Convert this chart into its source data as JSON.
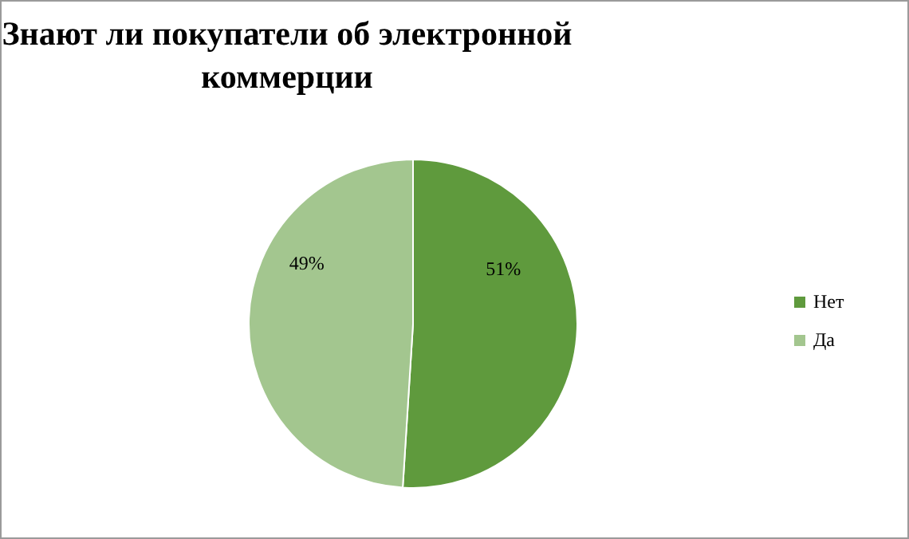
{
  "chart_data": {
    "type": "pie",
    "title": "Знают ли покупатели об электронной коммерции",
    "categories": [
      "Нет",
      "Да"
    ],
    "values": [
      51,
      49
    ],
    "colors": [
      "#5f9a3d",
      "#a3c68f"
    ],
    "value_labels": [
      "51%",
      "49%"
    ],
    "legend": "right"
  }
}
